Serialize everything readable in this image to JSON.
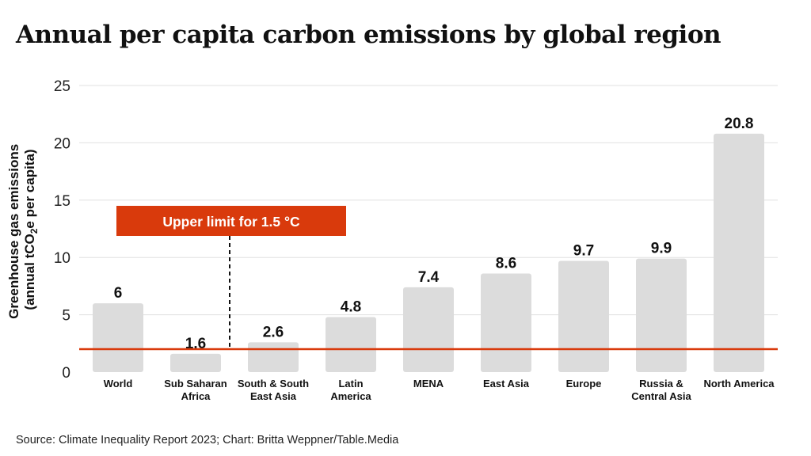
{
  "title": "Annual per capita carbon emissions by global region",
  "source": "Source: Climate Inequality Report 2023; Chart: Britta Weppner/Table.Media",
  "colors": {
    "bar": "#dcdcdc",
    "grid": "#e0e0e0",
    "accent": "#d93a0c",
    "text": "#111111"
  },
  "chart_data": {
    "type": "bar",
    "title": "Annual per capita carbon emissions by global region",
    "categories": [
      [
        "World"
      ],
      [
        "Sub Saharan",
        "Africa"
      ],
      [
        "South & South",
        "East Asia"
      ],
      [
        "Latin",
        "America"
      ],
      [
        "MENA"
      ],
      [
        "East Asia"
      ],
      [
        "Europe"
      ],
      [
        "Russia &",
        "Central Asia"
      ],
      [
        "North America"
      ]
    ],
    "values": [
      6,
      1.6,
      2.6,
      4.8,
      7.4,
      8.6,
      9.7,
      9.9,
      20.8
    ],
    "value_labels": [
      "6",
      "1.6",
      "2.6",
      "4.8",
      "7.4",
      "8.6",
      "9.7",
      "9.9",
      "20.8"
    ],
    "ylabel_line1": "Greenhouse gas emissions",
    "ylabel_line2_pre": "(annual tCO",
    "ylabel_line2_sub": "2",
    "ylabel_line2_post": "e per capita)",
    "ylim": [
      0,
      25
    ],
    "yticks": [
      0,
      5,
      10,
      15,
      20,
      25
    ],
    "grid": true,
    "reference_line": {
      "value": 2,
      "label": "Upper limit for 1.5 °C"
    }
  }
}
